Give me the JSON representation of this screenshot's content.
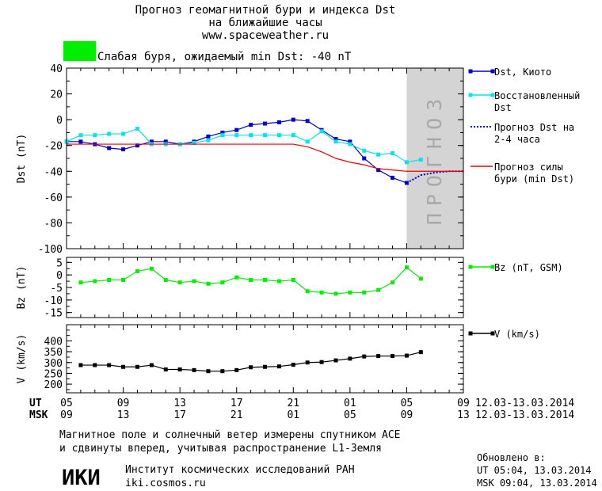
{
  "header": {
    "title_line1": "Прогноз геомагнитной бури и индекса Dst",
    "title_line2": "на ближайшие часы",
    "website": "www.spaceweather.ru"
  },
  "storm_indicator": {
    "color": "#00ee00",
    "text": "Слабая буря, ожидаемый min Dst: -40 nT"
  },
  "forecast_zone_label": "ПРОГНОЗ",
  "time_axis": {
    "ut_label": "UT",
    "msk_label": "MSK",
    "ut_ticks": [
      "05",
      "09",
      "13",
      "17",
      "21",
      "01",
      "05",
      "09"
    ],
    "msk_ticks": [
      "09",
      "13",
      "17",
      "21",
      "01",
      "05",
      "09",
      "13"
    ],
    "date_range_ut": "12.03-13.03.2014",
    "date_range_msk": "12.03-13.03.2014"
  },
  "footer": {
    "line1": "Магнитное поле и солнечный ветер измерены спутником ACE",
    "line2": "и сдвинуты вперед, учитывая распространение L1-Земля",
    "updated_label": "Обновлено в:",
    "updated_ut": "UT   05:04, 13.03.2014",
    "updated_msk": "MSK 09:04, 13.03.2014",
    "institute_logo": "ИКИ",
    "institute_name": "Институт космических исследований РАН",
    "institute_site": "iki.cosmos.ru"
  },
  "chart_data": [
    {
      "type": "line",
      "ylabel": "Dst (nT)",
      "ylim": [
        -100,
        40
      ],
      "yticks": [
        40,
        20,
        0,
        -20,
        -40,
        -60,
        -80,
        -100
      ],
      "x_hours_ut": [
        5,
        29
      ],
      "forecast_region_hours": [
        29,
        33
      ],
      "series": [
        {
          "name": "Dst, Киото",
          "color": "#0000cc",
          "marker": "square",
          "x": [
            5,
            6,
            7,
            8,
            9,
            10,
            11,
            12,
            13,
            14,
            15,
            16,
            17,
            18,
            19,
            20,
            21,
            22,
            23,
            24,
            25,
            26,
            27,
            28,
            29
          ],
          "values": [
            -17,
            -17,
            -19,
            -22,
            -23,
            -20,
            -17,
            -17,
            -19,
            -17,
            -13,
            -10,
            -8,
            -4,
            -3,
            -2,
            0,
            -1,
            -8,
            -15,
            -17,
            -30,
            -39,
            -45,
            -49
          ]
        },
        {
          "name": "Восстановленный Dst",
          "color": "#00e5ee",
          "marker": "square",
          "x": [
            5,
            6,
            7,
            8,
            9,
            10,
            11,
            12,
            13,
            14,
            15,
            16,
            17,
            18,
            19,
            20,
            21,
            22,
            23,
            24,
            25,
            26,
            27,
            28,
            29,
            30
          ],
          "values": [
            -17,
            -12,
            -12,
            -11,
            -11,
            -7,
            -19,
            -19,
            -19,
            -18,
            -16,
            -12,
            -12,
            -12,
            -12,
            -12,
            -12,
            -17,
            -9,
            -17,
            -19,
            -24,
            -27,
            -26,
            -33,
            -31
          ]
        },
        {
          "name": "Прогноз Dst на 2-4 часа",
          "color": "#0000cc",
          "style": "dotted",
          "x": [
            29,
            30,
            31,
            32,
            33
          ],
          "values": [
            -49,
            -43,
            -41,
            -40,
            -40
          ]
        },
        {
          "name": "Прогноз силы бури (min Dst)",
          "color": "#ee0000",
          "x": [
            5,
            21,
            22,
            23,
            24,
            25,
            26,
            27,
            28,
            29,
            30,
            31,
            32,
            33
          ],
          "values": [
            -19,
            -19,
            -21,
            -25,
            -30,
            -33,
            -35,
            -38,
            -39,
            -40,
            -40,
            -40,
            -40,
            -40
          ]
        }
      ]
    },
    {
      "type": "line",
      "ylabel": "Bz (nT)",
      "ylim": [
        -17,
        7
      ],
      "yticks": [
        5,
        0,
        -5,
        -10,
        -15
      ],
      "series": [
        {
          "name": "Bz (nT, GSM)",
          "color": "#00ee00",
          "marker": "square",
          "x": [
            6,
            7,
            8,
            9,
            10,
            11,
            12,
            13,
            14,
            15,
            16,
            17,
            18,
            19,
            20,
            21,
            22,
            23,
            24,
            25,
            26,
            27,
            28,
            29,
            30
          ],
          "values": [
            -3,
            -2.5,
            -2,
            -2,
            1.5,
            2.5,
            -2,
            -3,
            -2.5,
            -3.5,
            -3,
            -1,
            -2,
            -2,
            -2.5,
            -2,
            -6.5,
            -7,
            -7.5,
            -7,
            -7,
            -6,
            -3,
            3,
            -1.5
          ]
        }
      ]
    },
    {
      "type": "line",
      "ylabel": "V (km/s)",
      "ylim": [
        160,
        475
      ],
      "yticks": [
        400,
        350,
        300,
        250,
        200
      ],
      "series": [
        {
          "name": "V (km/s)",
          "color": "#000000",
          "marker": "square",
          "x": [
            6,
            7,
            8,
            9,
            10,
            11,
            12,
            13,
            14,
            15,
            16,
            17,
            18,
            19,
            20,
            21,
            22,
            23,
            24,
            25,
            26,
            27,
            28,
            29,
            30
          ],
          "values": [
            288,
            288,
            288,
            280,
            280,
            288,
            268,
            268,
            265,
            260,
            260,
            265,
            278,
            280,
            282,
            290,
            300,
            302,
            310,
            318,
            328,
            330,
            330,
            332,
            348
          ]
        }
      ]
    }
  ]
}
